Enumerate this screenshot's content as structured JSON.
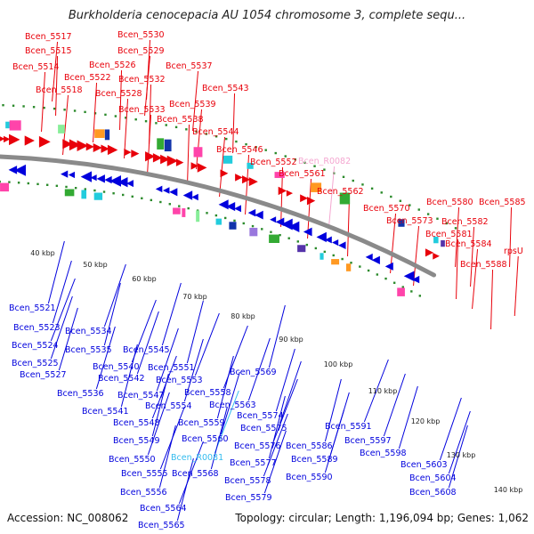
{
  "header": {
    "title": "Burkholderia cenocepacia AU 1054 chromosome 3, complete sequ..."
  },
  "footer": {
    "accession": "Accession: NC_008062",
    "summary": "Topology: circular; Length: 1,196,094 bp; Genes: 1,062"
  },
  "colors": {
    "plus": "#e8000a",
    "minus": "#0000dd",
    "rna_plus": "#f4a6d0",
    "rna_minus": "#33bbee",
    "axis": "#8a8a8a",
    "dots": "#2b8a2b"
  },
  "ticks": [
    "40 kbp",
    "50 kbp",
    "60 kbp",
    "70 kbp",
    "80 kbp",
    "90 kbp",
    "100 kbp",
    "110 kbp",
    "120 kbp",
    "130 kbp",
    "140 kbp"
  ],
  "top_labels": [
    {
      "text": "Bcen_5517"
    },
    {
      "text": "Bcen_5530"
    },
    {
      "text": "Bcen_5515"
    },
    {
      "text": "Bcen_5529"
    },
    {
      "text": "Bcen_5514"
    },
    {
      "text": "Bcen_5526"
    },
    {
      "text": "Bcen_5537"
    },
    {
      "text": "Bcen_5522"
    },
    {
      "text": "Bcen_5532"
    },
    {
      "text": "Bcen_5518"
    },
    {
      "text": "Bcen_5528"
    },
    {
      "text": "Bcen_5543"
    },
    {
      "text": "Bcen_5539"
    },
    {
      "text": "Bcen_5533"
    },
    {
      "text": "Bcen_5538"
    },
    {
      "text": "Bcen_5544"
    },
    {
      "text": "Bcen_5546"
    },
    {
      "text": "Bcen_5552"
    },
    {
      "text": "Bcen_R0082",
      "rna": true
    },
    {
      "text": "Bcen_5561"
    },
    {
      "text": "Bcen_5562"
    },
    {
      "text": "Bcen_5570"
    },
    {
      "text": "Bcen_5580"
    },
    {
      "text": "Bcen_5585"
    },
    {
      "text": "Bcen_5573"
    },
    {
      "text": "Bcen_5582"
    },
    {
      "text": "Bcen_5581"
    },
    {
      "text": "Bcen_5584"
    },
    {
      "text": "rpsU"
    },
    {
      "text": "Bcen_5588"
    }
  ],
  "bottom_labels": [
    {
      "text": "Bcen_5521"
    },
    {
      "text": "Bcen_5523"
    },
    {
      "text": "Bcen_5534"
    },
    {
      "text": "Bcen_5524"
    },
    {
      "text": "Bcen_5535"
    },
    {
      "text": "Bcen_5545"
    },
    {
      "text": "Bcen_5525"
    },
    {
      "text": "Bcen_5540"
    },
    {
      "text": "Bcen_5551"
    },
    {
      "text": "Bcen_5527"
    },
    {
      "text": "Bcen_5542"
    },
    {
      "text": "Bcen_5553"
    },
    {
      "text": "Bcen_5569"
    },
    {
      "text": "Bcen_5536"
    },
    {
      "text": "Bcen_5547"
    },
    {
      "text": "Bcen_5558"
    },
    {
      "text": "Bcen_5541"
    },
    {
      "text": "Bcen_5554"
    },
    {
      "text": "Bcen_5563"
    },
    {
      "text": "Bcen_5548"
    },
    {
      "text": "Bcen_5559"
    },
    {
      "text": "Bcen_5574"
    },
    {
      "text": "Bcen_5575"
    },
    {
      "text": "Bcen_5591"
    },
    {
      "text": "Bcen_5549"
    },
    {
      "text": "Bcen_5560"
    },
    {
      "text": "Bcen_5597"
    },
    {
      "text": "Bcen_5576"
    },
    {
      "text": "Bcen_5586"
    },
    {
      "text": "Bcen_5598"
    },
    {
      "text": "Bcen_5550"
    },
    {
      "text": "Bcen_R0081",
      "rna": true
    },
    {
      "text": "Bcen_5577"
    },
    {
      "text": "Bcen_5589"
    },
    {
      "text": "Bcen_5603"
    },
    {
      "text": "Bcen_5555"
    },
    {
      "text": "Bcen_5568"
    },
    {
      "text": "Bcen_5590"
    },
    {
      "text": "Bcen_5604"
    },
    {
      "text": "Bcen_5578"
    },
    {
      "text": "Bcen_5556"
    },
    {
      "text": "Bcen_5608"
    },
    {
      "text": "Bcen_5579"
    },
    {
      "text": "Bcen_5564"
    },
    {
      "text": "Bcen_5565"
    }
  ]
}
